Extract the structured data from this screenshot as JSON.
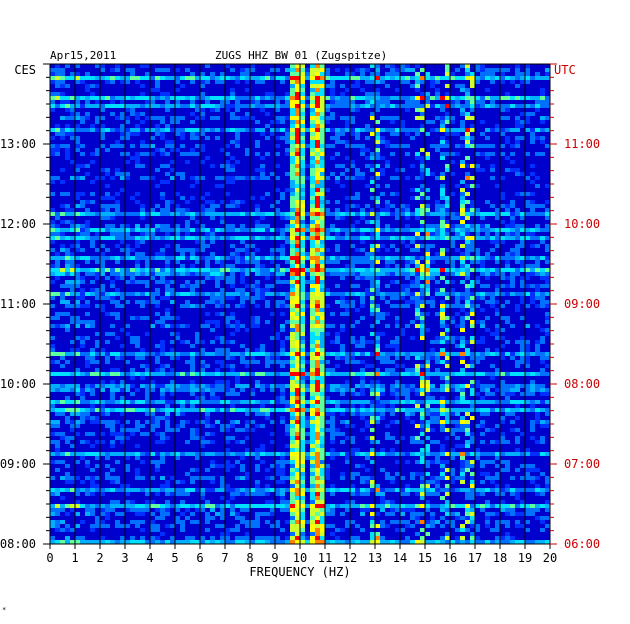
{
  "header": {
    "date": "Apr15,2011",
    "station": "ZUGS HHZ BW 01 (Zugspitze)",
    "left_tz": "CES",
    "right_tz": "UTC"
  },
  "footer_mark": "*",
  "colors": {
    "background": "#0000cc",
    "low": "#0000ff",
    "mid": "#00ccff",
    "high": "#ffff00",
    "peak": "#ff0000",
    "utc_label": "#cc0000"
  },
  "chart_data": {
    "type": "heatmap",
    "title": "ZUGS HHZ BW 01 (Zugspitze)",
    "xlabel": "FREQUENCY (HZ)",
    "x_ticks": [
      "0",
      "1",
      "2",
      "3",
      "4",
      "5",
      "6",
      "7",
      "8",
      "9",
      "10",
      "11",
      "12",
      "13",
      "14",
      "15",
      "16",
      "17",
      "18",
      "19",
      "20"
    ],
    "xlim": [
      0,
      20
    ],
    "left_time_ticks": [
      "13:00",
      "12:00",
      "11:00",
      "10:00",
      "09:00",
      "08:00"
    ],
    "right_time_ticks": [
      "11:00",
      "10:00",
      "09:00",
      "08:00",
      "07:00",
      "06:00"
    ],
    "time_range_ces": [
      "08:00",
      "14:00"
    ],
    "persistent_peaks_hz": [
      9.9,
      10.7
    ],
    "intermittent_peaks_hz": [
      13.0,
      14.9,
      15.8,
      16.7
    ],
    "scale": "spectral amplitude (blue low → red high)"
  }
}
